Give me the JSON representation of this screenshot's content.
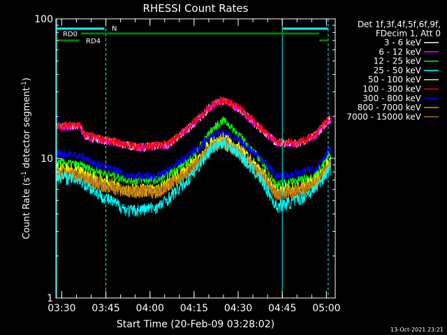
{
  "chart_data": {
    "type": "line",
    "title": "RHESSI Count Rates",
    "xlabel": "Start Time (20-Feb-09 03:28:02)",
    "ylabel_prefix": "Count Rate (s",
    "ylabel_sup": "-1",
    "ylabel_mid": " detector segment",
    "ylabel_sup2": "-1",
    "ylabel_suffix": ")",
    "yscale": "log",
    "ylim": [
      1,
      100
    ],
    "xlim_minutes": [
      0,
      95
    ],
    "y_ticks": [
      {
        "label": "1",
        "value": 1
      },
      {
        "label": "10",
        "value": 10
      },
      {
        "label": "100",
        "value": 100
      }
    ],
    "x_ticks": [
      {
        "label": "03:30",
        "minute": 2
      },
      {
        "label": "03:45",
        "minute": 17
      },
      {
        "label": "04:00",
        "minute": 32
      },
      {
        "label": "04:15",
        "minute": 47
      },
      {
        "label": "04:30",
        "minute": 62
      },
      {
        "label": "04:45",
        "minute": 77
      },
      {
        "label": "05:00",
        "minute": 92
      }
    ],
    "series": [
      {
        "name": "3 - 6 keV",
        "color": "#ffffff",
        "values": [
          [
            0,
            17.0
          ],
          [
            8,
            17.0
          ],
          [
            10,
            14.5
          ],
          [
            20,
            13.0
          ],
          [
            28,
            12.0
          ],
          [
            38,
            12.5
          ],
          [
            46,
            17.0
          ],
          [
            53,
            24.0
          ],
          [
            57,
            26.0
          ],
          [
            62,
            23.0
          ],
          [
            70,
            16.0
          ],
          [
            75,
            13.0
          ],
          [
            82,
            12.8
          ],
          [
            88,
            14.5
          ],
          [
            93,
            19.0
          ]
        ]
      },
      {
        "name": "6 - 12 keV",
        "color": "#ff00ff",
        "values": [
          [
            0,
            17.0
          ],
          [
            8,
            17.0
          ],
          [
            10,
            14.5
          ],
          [
            20,
            13.0
          ],
          [
            28,
            12.0
          ],
          [
            38,
            12.5
          ],
          [
            46,
            17.0
          ],
          [
            53,
            24.0
          ],
          [
            57,
            26.0
          ],
          [
            62,
            23.0
          ],
          [
            70,
            16.0
          ],
          [
            75,
            13.0
          ],
          [
            82,
            12.8
          ],
          [
            88,
            14.5
          ],
          [
            93,
            19.0
          ]
        ]
      },
      {
        "name": "12 - 25 keV",
        "color": "#00ff00",
        "values": [
          [
            0,
            9.5
          ],
          [
            8,
            9.0
          ],
          [
            15,
            8.0
          ],
          [
            25,
            7.0
          ],
          [
            35,
            7.0
          ],
          [
            45,
            9.5
          ],
          [
            53,
            16.0
          ],
          [
            57,
            19.0
          ],
          [
            62,
            15.0
          ],
          [
            70,
            9.5
          ],
          [
            75,
            6.5
          ],
          [
            82,
            7.0
          ],
          [
            88,
            7.5
          ],
          [
            93,
            10.5
          ]
        ]
      },
      {
        "name": "25 - 50 keV",
        "color": "#00ffff",
        "values": [
          [
            0,
            7.5
          ],
          [
            8,
            7.0
          ],
          [
            15,
            5.5
          ],
          [
            25,
            4.2
          ],
          [
            35,
            4.5
          ],
          [
            45,
            7.0
          ],
          [
            53,
            12.0
          ],
          [
            57,
            13.0
          ],
          [
            62,
            11.0
          ],
          [
            70,
            7.0
          ],
          [
            75,
            4.5
          ],
          [
            82,
            5.0
          ],
          [
            88,
            6.0
          ],
          [
            93,
            8.5
          ]
        ]
      },
      {
        "name": "50 - 100 keV",
        "color": "#ffff00",
        "values": [
          [
            0,
            8.5
          ],
          [
            8,
            8.0
          ],
          [
            15,
            7.0
          ],
          [
            25,
            6.0
          ],
          [
            35,
            6.0
          ],
          [
            45,
            8.5
          ],
          [
            53,
            13.0
          ],
          [
            57,
            14.0
          ],
          [
            62,
            12.0
          ],
          [
            70,
            8.0
          ],
          [
            75,
            5.8
          ],
          [
            82,
            6.2
          ],
          [
            88,
            6.8
          ],
          [
            93,
            9.5
          ]
        ]
      },
      {
        "name": "100 - 300 keV",
        "color": "#ff0000",
        "values": [
          [
            0,
            17.0
          ],
          [
            8,
            17.5
          ],
          [
            10,
            14.8
          ],
          [
            20,
            13.2
          ],
          [
            28,
            12.2
          ],
          [
            38,
            12.7
          ],
          [
            46,
            17.5
          ],
          [
            53,
            24.5
          ],
          [
            57,
            26.5
          ],
          [
            62,
            23.5
          ],
          [
            70,
            16.5
          ],
          [
            75,
            13.2
          ],
          [
            82,
            13.0
          ],
          [
            88,
            14.8
          ],
          [
            93,
            19.5
          ]
        ]
      },
      {
        "name": "300 - 800 keV",
        "color": "#0000ff",
        "values": [
          [
            0,
            11.0
          ],
          [
            8,
            10.5
          ],
          [
            15,
            9.0
          ],
          [
            25,
            7.5
          ],
          [
            35,
            7.5
          ],
          [
            45,
            10.5
          ],
          [
            53,
            14.5
          ],
          [
            57,
            15.5
          ],
          [
            62,
            13.5
          ],
          [
            70,
            10.0
          ],
          [
            75,
            7.5
          ],
          [
            82,
            7.8
          ],
          [
            88,
            8.5
          ],
          [
            93,
            11.5
          ]
        ]
      },
      {
        "name": "800 - 7000 keV",
        "color": "#ff8c00",
        "values": [
          [
            0,
            8.0
          ],
          [
            8,
            7.5
          ],
          [
            15,
            6.5
          ],
          [
            25,
            5.8
          ],
          [
            35,
            5.8
          ],
          [
            45,
            8.0
          ],
          [
            53,
            12.0
          ],
          [
            57,
            13.0
          ],
          [
            62,
            11.0
          ],
          [
            70,
            7.5
          ],
          [
            75,
            5.5
          ],
          [
            82,
            5.8
          ],
          [
            88,
            6.5
          ],
          [
            93,
            9.0
          ]
        ]
      },
      {
        "name": "7000 - 15000 keV",
        "color": "#aa7a1a",
        "values": [
          [
            0,
            8.0
          ],
          [
            8,
            7.5
          ],
          [
            15,
            6.5
          ],
          [
            25,
            5.8
          ],
          [
            35,
            5.8
          ],
          [
            45,
            8.0
          ],
          [
            53,
            12.0
          ],
          [
            57,
            13.0
          ],
          [
            62,
            11.0
          ],
          [
            70,
            7.5
          ],
          [
            75,
            5.5
          ],
          [
            82,
            5.8
          ],
          [
            88,
            6.5
          ],
          [
            93,
            9.0
          ]
        ]
      }
    ],
    "series_draw_order": [
      0,
      1,
      5,
      2,
      6,
      4,
      7,
      8,
      3
    ],
    "legend": {
      "placement": "right",
      "header_line1": "Det 1f,3f,4f,5f,6f,9f,",
      "header_line2": "FDecim 1, Att 0"
    },
    "vertical_markers": [
      {
        "minute": 0.3,
        "color": "#00ffff",
        "style": "solid"
      },
      {
        "minute": 17,
        "color": "#00ffff",
        "style": "dashed"
      },
      {
        "minute": 77,
        "color": "#00ffff",
        "style": "solid"
      },
      {
        "minute": 92.6,
        "color": "#00ffff",
        "style": "dashed"
      }
    ],
    "flag_bars": [
      {
        "label": "N",
        "color": "#00ffff",
        "segments": [
          [
            0,
            16.5
          ],
          [
            77.2,
            92.5
          ]
        ],
        "level": 1
      },
      {
        "label": "RD0",
        "color": "#008000",
        "segments": [
          [
            8.5,
            89.5
          ]
        ],
        "level": 2
      },
      {
        "label": "RD4",
        "color": "#008000",
        "segments": [
          [
            0.2,
            8
          ],
          [
            89.6,
            92.6
          ]
        ],
        "level": 3
      }
    ]
  },
  "footer": {
    "timestamp": "13-Oct-2021 23:21"
  },
  "colors": {
    "background": "#000000",
    "axes": "#ffffff",
    "markers": "#00ffff",
    "flags_green": "#008000"
  }
}
